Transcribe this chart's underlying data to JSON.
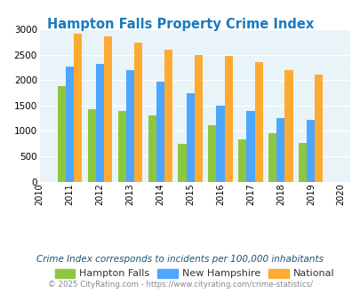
{
  "title": "Hampton Falls Property Crime Index",
  "years": [
    2010,
    2011,
    2012,
    2013,
    2014,
    2015,
    2016,
    2017,
    2018,
    2019,
    2020
  ],
  "bar_years": [
    2011,
    2012,
    2013,
    2014,
    2015,
    2016,
    2017,
    2018,
    2019
  ],
  "hampton_falls": [
    1875,
    1430,
    1390,
    1300,
    750,
    1115,
    825,
    950,
    760
  ],
  "new_hampshire": [
    2270,
    2310,
    2190,
    1975,
    1740,
    1500,
    1390,
    1260,
    1210
  ],
  "national": [
    2910,
    2860,
    2740,
    2600,
    2500,
    2470,
    2360,
    2190,
    2100
  ],
  "color_hampton": "#8dc63f",
  "color_nh": "#4da6ff",
  "color_national": "#ffaa33",
  "bg_color": "#e8f4f8",
  "title_color": "#1a7abf",
  "ylim": [
    0,
    3000
  ],
  "yticks": [
    0,
    500,
    1000,
    1500,
    2000,
    2500,
    3000
  ],
  "legend_labels": [
    "Hampton Falls",
    "New Hampshire",
    "National"
  ],
  "footnote1": "Crime Index corresponds to incidents per 100,000 inhabitants",
  "footnote2": "© 2025 CityRating.com - https://www.cityrating.com/crime-statistics/",
  "footnote_color1": "#1a5276",
  "footnote_color2": "#888888"
}
